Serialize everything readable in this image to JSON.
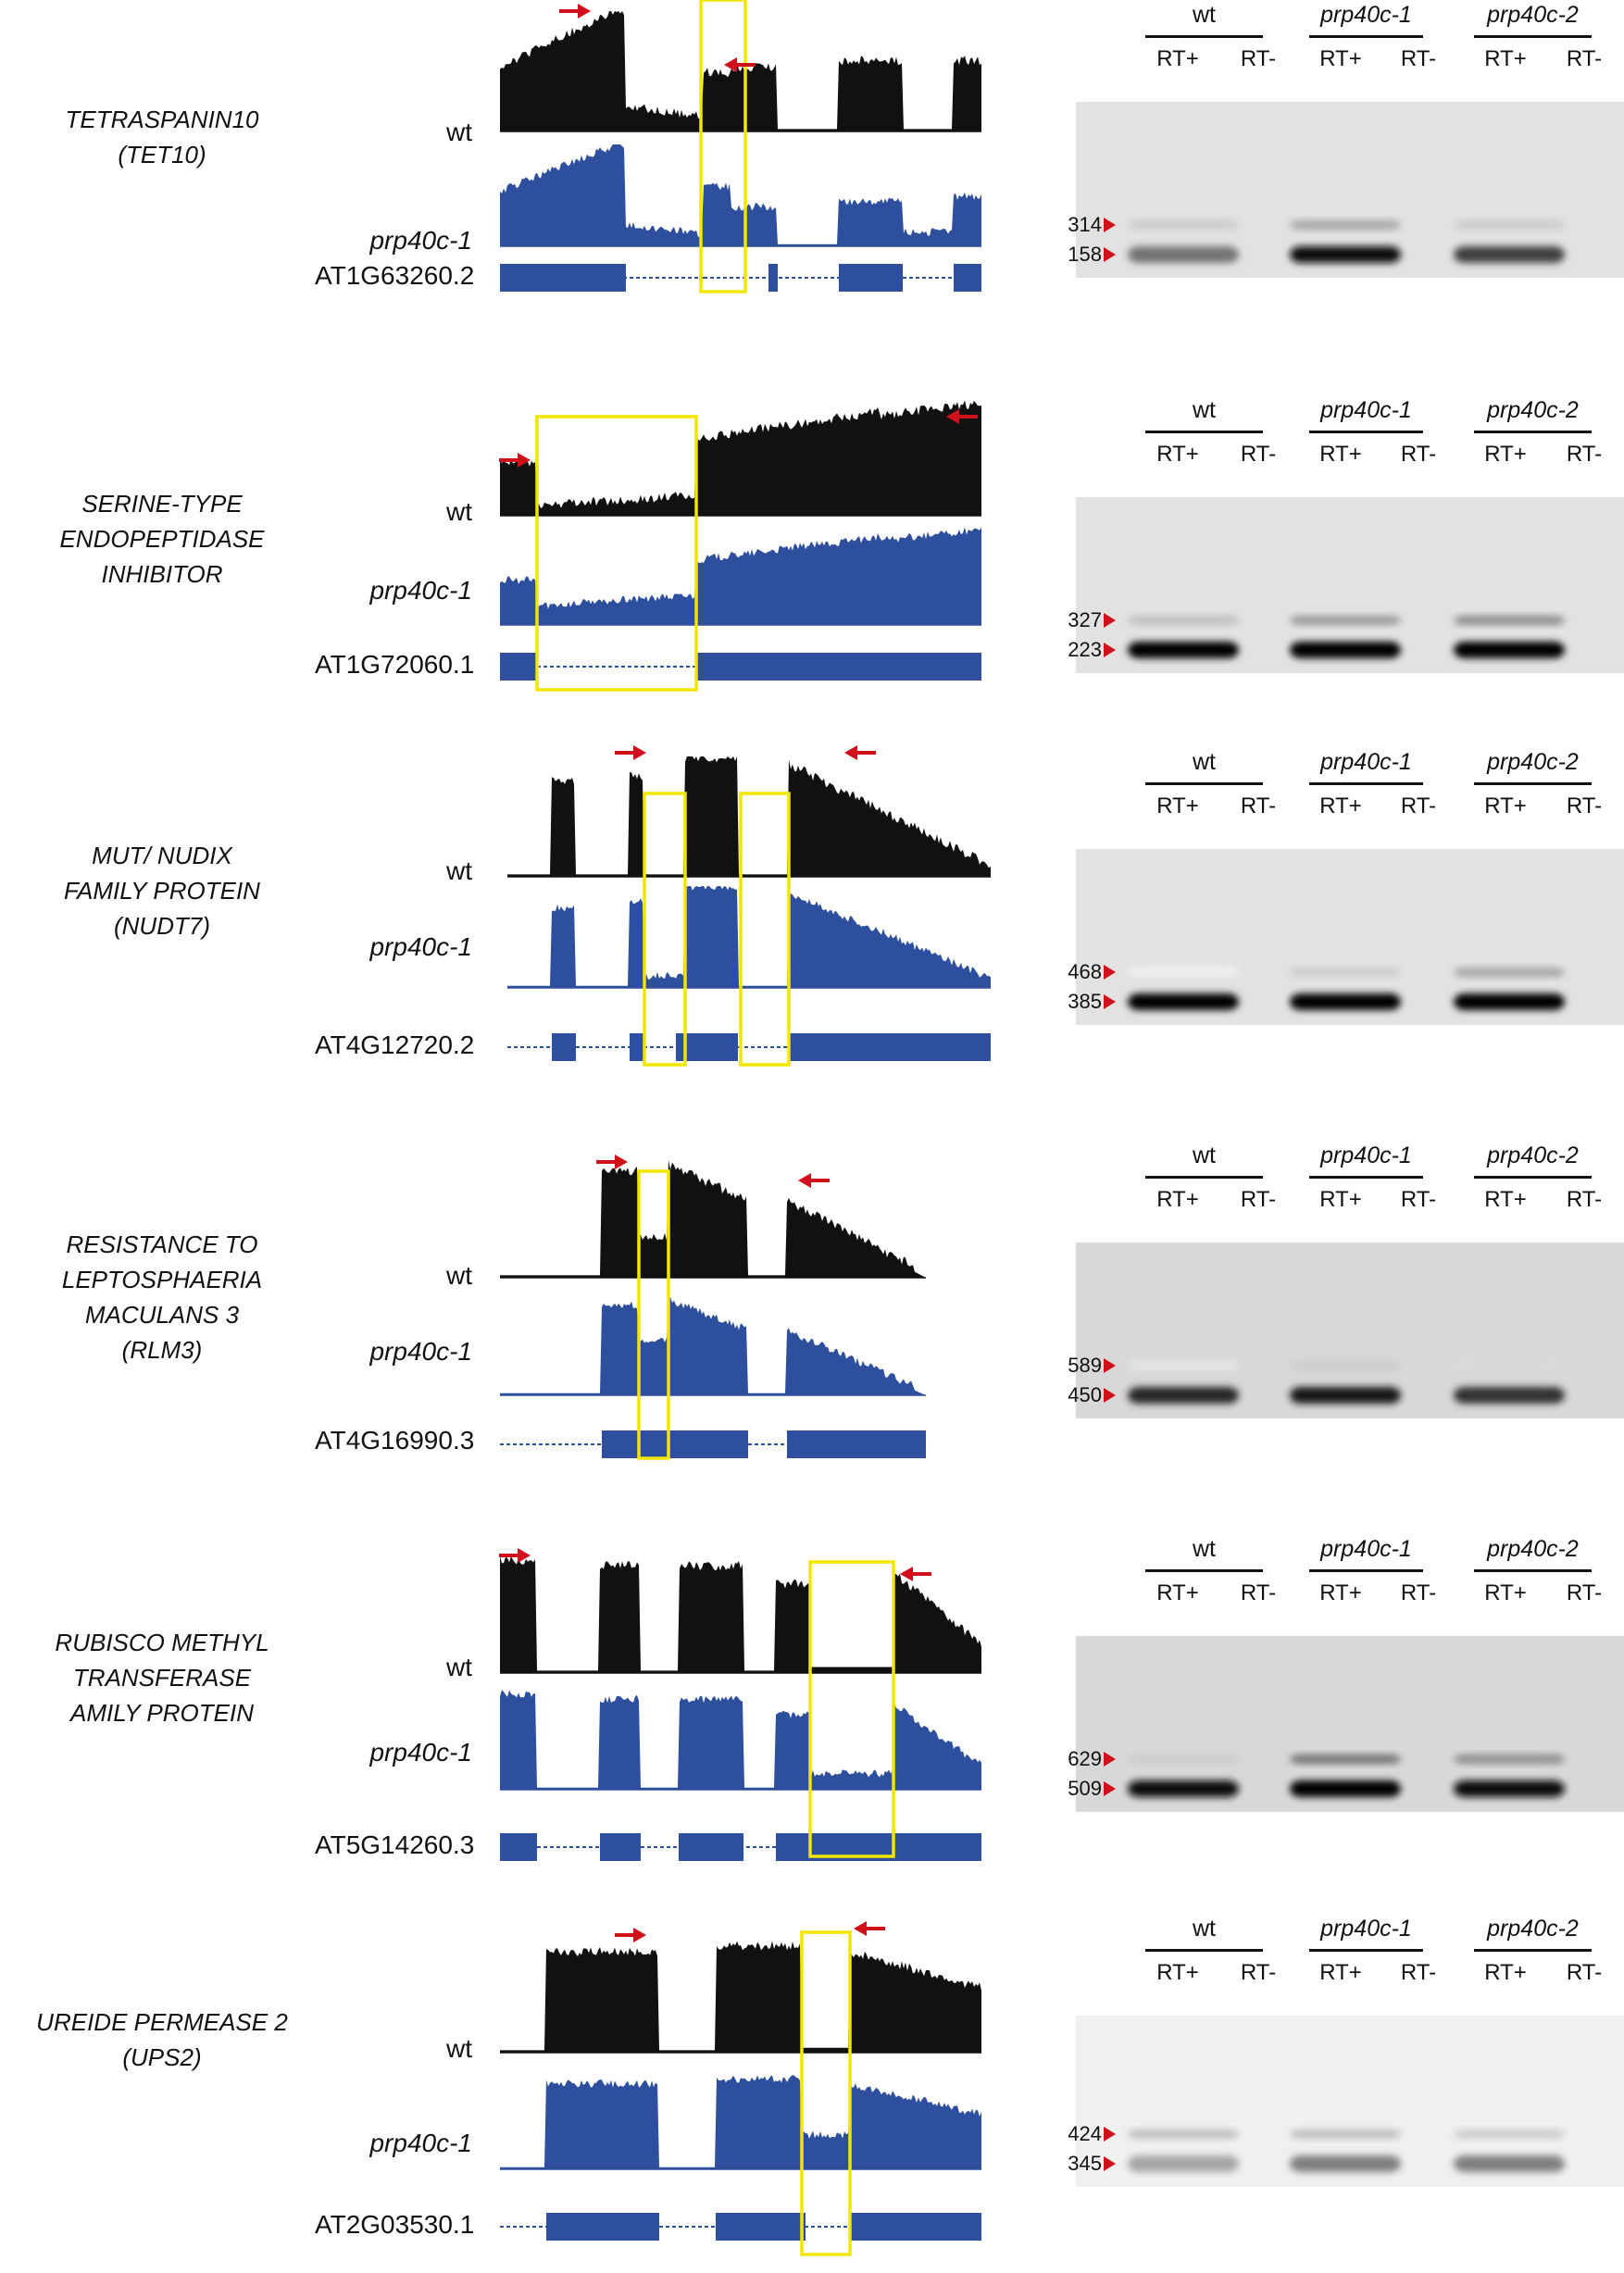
{
  "colors": {
    "wt_track": "#111111",
    "mutant_track": "#2e4f9e",
    "highlight": "#f2e600",
    "arrow": "#d0101a"
  },
  "panels": [
    {
      "gene_lines": [
        "TETRASPANIN10",
        "(TET10)"
      ],
      "wt_label": "wt",
      "mut_label": "prp40c-1",
      "transcript": "AT1G63260.2",
      "gel_headers": [
        "wt",
        "prp40c-1",
        "prp40c-2"
      ],
      "rt_labels": [
        "RT+",
        "RT-",
        "RT+",
        "RT-",
        "RT+",
        "RT-"
      ],
      "sizes": [
        "314",
        "158"
      ],
      "gel_brightness": "light"
    },
    {
      "gene_lines": [
        "SERINE-TYPE",
        "ENDOPEPTIDASE",
        "INHIBITOR"
      ],
      "wt_label": "wt",
      "mut_label": "prp40c-1",
      "transcript": "AT1G72060.1",
      "gel_headers": [
        "wt",
        "prp40c-1",
        "prp40c-2"
      ],
      "rt_labels": [
        "RT+",
        "RT-",
        "RT+",
        "RT-",
        "RT+",
        "RT-"
      ],
      "sizes": [
        "327",
        "223"
      ],
      "gel_brightness": "light"
    },
    {
      "gene_lines": [
        "MUT/ NUDIX",
        "FAMILY PROTEIN",
        "(NUDT7)"
      ],
      "wt_label": "wt",
      "mut_label": "prp40c-1",
      "transcript": "AT4G12720.2",
      "gel_headers": [
        "wt",
        "prp40c-1",
        "prp40c-2"
      ],
      "rt_labels": [
        "RT+",
        "RT-",
        "RT+",
        "RT-",
        "RT+",
        "RT-"
      ],
      "sizes": [
        "468",
        "385"
      ],
      "gel_brightness": "light"
    },
    {
      "gene_lines": [
        "RESISTANCE TO",
        "LEPTOSPHAERIA",
        "MACULANS 3",
        "(RLM3)"
      ],
      "wt_label": "wt",
      "mut_label": "prp40c-1",
      "transcript": "AT4G16990.3",
      "gel_headers": [
        "wt",
        "prp40c-1",
        "prp40c-2"
      ],
      "rt_labels": [
        "RT+",
        "RT-",
        "RT+",
        "RT-",
        "RT+",
        "RT-"
      ],
      "sizes": [
        "589",
        "450"
      ],
      "gel_brightness": "mid"
    },
    {
      "gene_lines": [
        "RUBISCO METHYL",
        "TRANSFERASE",
        "AMILY PROTEIN"
      ],
      "wt_label": "wt",
      "mut_label": "prp40c-1",
      "transcript": "AT5G14260.3",
      "gel_headers": [
        "wt",
        "prp40c-1",
        "prp40c-2"
      ],
      "rt_labels": [
        "RT+",
        "RT-",
        "RT+",
        "RT-",
        "RT+",
        "RT-"
      ],
      "sizes": [
        "629",
        "509"
      ],
      "gel_brightness": "mid"
    },
    {
      "gene_lines": [
        "UREIDE PERMEASE 2",
        "(UPS2)"
      ],
      "wt_label": "wt",
      "mut_label": "prp40c-1",
      "transcript": "AT2G03530.1",
      "gel_headers": [
        "wt",
        "prp40c-1",
        "prp40c-2"
      ],
      "rt_labels": [
        "RT+",
        "RT-",
        "RT+",
        "RT-",
        "RT+",
        "RT-"
      ],
      "sizes": [
        "424",
        "345"
      ],
      "gel_brightness": "pale"
    }
  ]
}
